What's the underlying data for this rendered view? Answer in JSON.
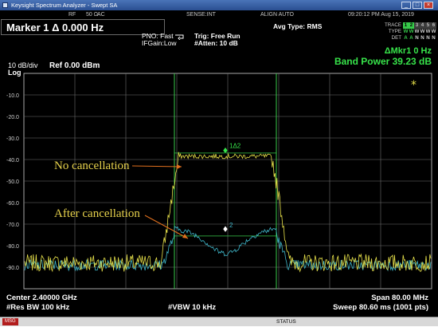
{
  "window": {
    "title": "Keysight Spectrum Analyzer - Swept SA",
    "minimize_label": "_",
    "maximize_label": "□",
    "close_label": "×"
  },
  "statusbar": {
    "rf": "RF",
    "impedance": "50 Ω",
    "coupling": "AC",
    "sense": "SENSE:INT",
    "align": "ALIGN AUTO",
    "datetime": "09:20:12 PM Aug 15, 2019"
  },
  "marker": {
    "readout": "Marker 1 Δ 0.000 Hz",
    "delta_label": "ΔMkr1 0 Hz",
    "band_power": "Band Power 39.23 dB",
    "marker1_label": "1Δ2",
    "marker2_label": "2"
  },
  "settings": {
    "pno": "PNO: Fast",
    "ifgain": "IFGain:Low",
    "trig": "Trig: Free Run",
    "atten": "#Atten: 10 dB",
    "avg_type": "Avg Type: RMS"
  },
  "trace_legend": {
    "trace_label": "TRACE",
    "trace_values": [
      "1",
      "2",
      "3",
      "4",
      "5",
      "6"
    ],
    "type_label": "TYPE",
    "type_values": [
      "W",
      "W",
      "W",
      "W",
      "W",
      "W"
    ],
    "det_label": "DET",
    "det_values": [
      "A",
      "A",
      "N",
      "N",
      "N",
      "N"
    ]
  },
  "scale": {
    "db_per_div": "10 dB/div",
    "log": "Log",
    "ref": "Ref 0.00 dBm",
    "y_labels": [
      "-10.0",
      "-20.0",
      "-30.0",
      "-40.0",
      "-50.0",
      "-60.0",
      "-70.0",
      "-80.0",
      "-90.0"
    ],
    "ref_value": 0,
    "db_per_division": 10,
    "divisions": 10
  },
  "annotations": {
    "no_cancellation": "No cancellation",
    "after_cancellation": "After cancellation",
    "star": "*"
  },
  "footer": {
    "center": "Center 2.40000 GHz",
    "res_bw": "#Res BW 100 kHz",
    "vbw": "#VBW 10 kHz",
    "span": "Span 80.00 MHz",
    "sweep": "Sweep  80.60 ms (1001 pts)"
  },
  "bottom_status": {
    "msg": "MSG",
    "status": "STATUS"
  },
  "colors": {
    "trace_no_cancel": "#e6e04a",
    "trace_after_cancel": "#3fb6c9",
    "band_lines": "#37c94a",
    "grid": "#6f6f6f",
    "annotation": "#e6d14c",
    "arrow": "#e0701e",
    "legend_active": "#37c94a"
  }
}
